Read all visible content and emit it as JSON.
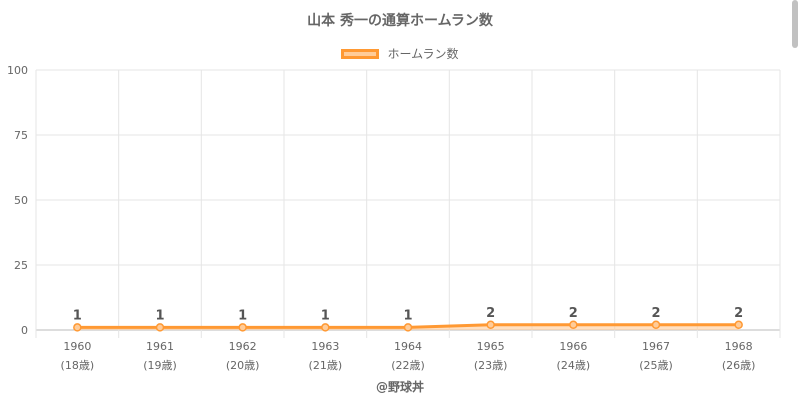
{
  "chart_data": {
    "type": "line",
    "title": "山本 秀一の通算ホームラン数",
    "categories": [
      "1960",
      "1961",
      "1962",
      "1963",
      "1964",
      "1965",
      "1966",
      "1967",
      "1968"
    ],
    "category_sublabels": [
      "(18歳)",
      "(19歳)",
      "(20歳)",
      "(21歳)",
      "(22歳)",
      "(23歳)",
      "(24歳)",
      "(25歳)",
      "(26歳)"
    ],
    "series": [
      {
        "name": "ホームラン数",
        "values": [
          1,
          1,
          1,
          1,
          1,
          2,
          2,
          2,
          2
        ],
        "color": "#ff9933",
        "fill": "#ffcc99"
      }
    ],
    "ylim": [
      0,
      100
    ],
    "yticks": [
      "0",
      "25",
      "50",
      "75",
      "100"
    ],
    "grid": true,
    "legend_position": "top"
  },
  "footer": {
    "credit": "@野球丼"
  }
}
